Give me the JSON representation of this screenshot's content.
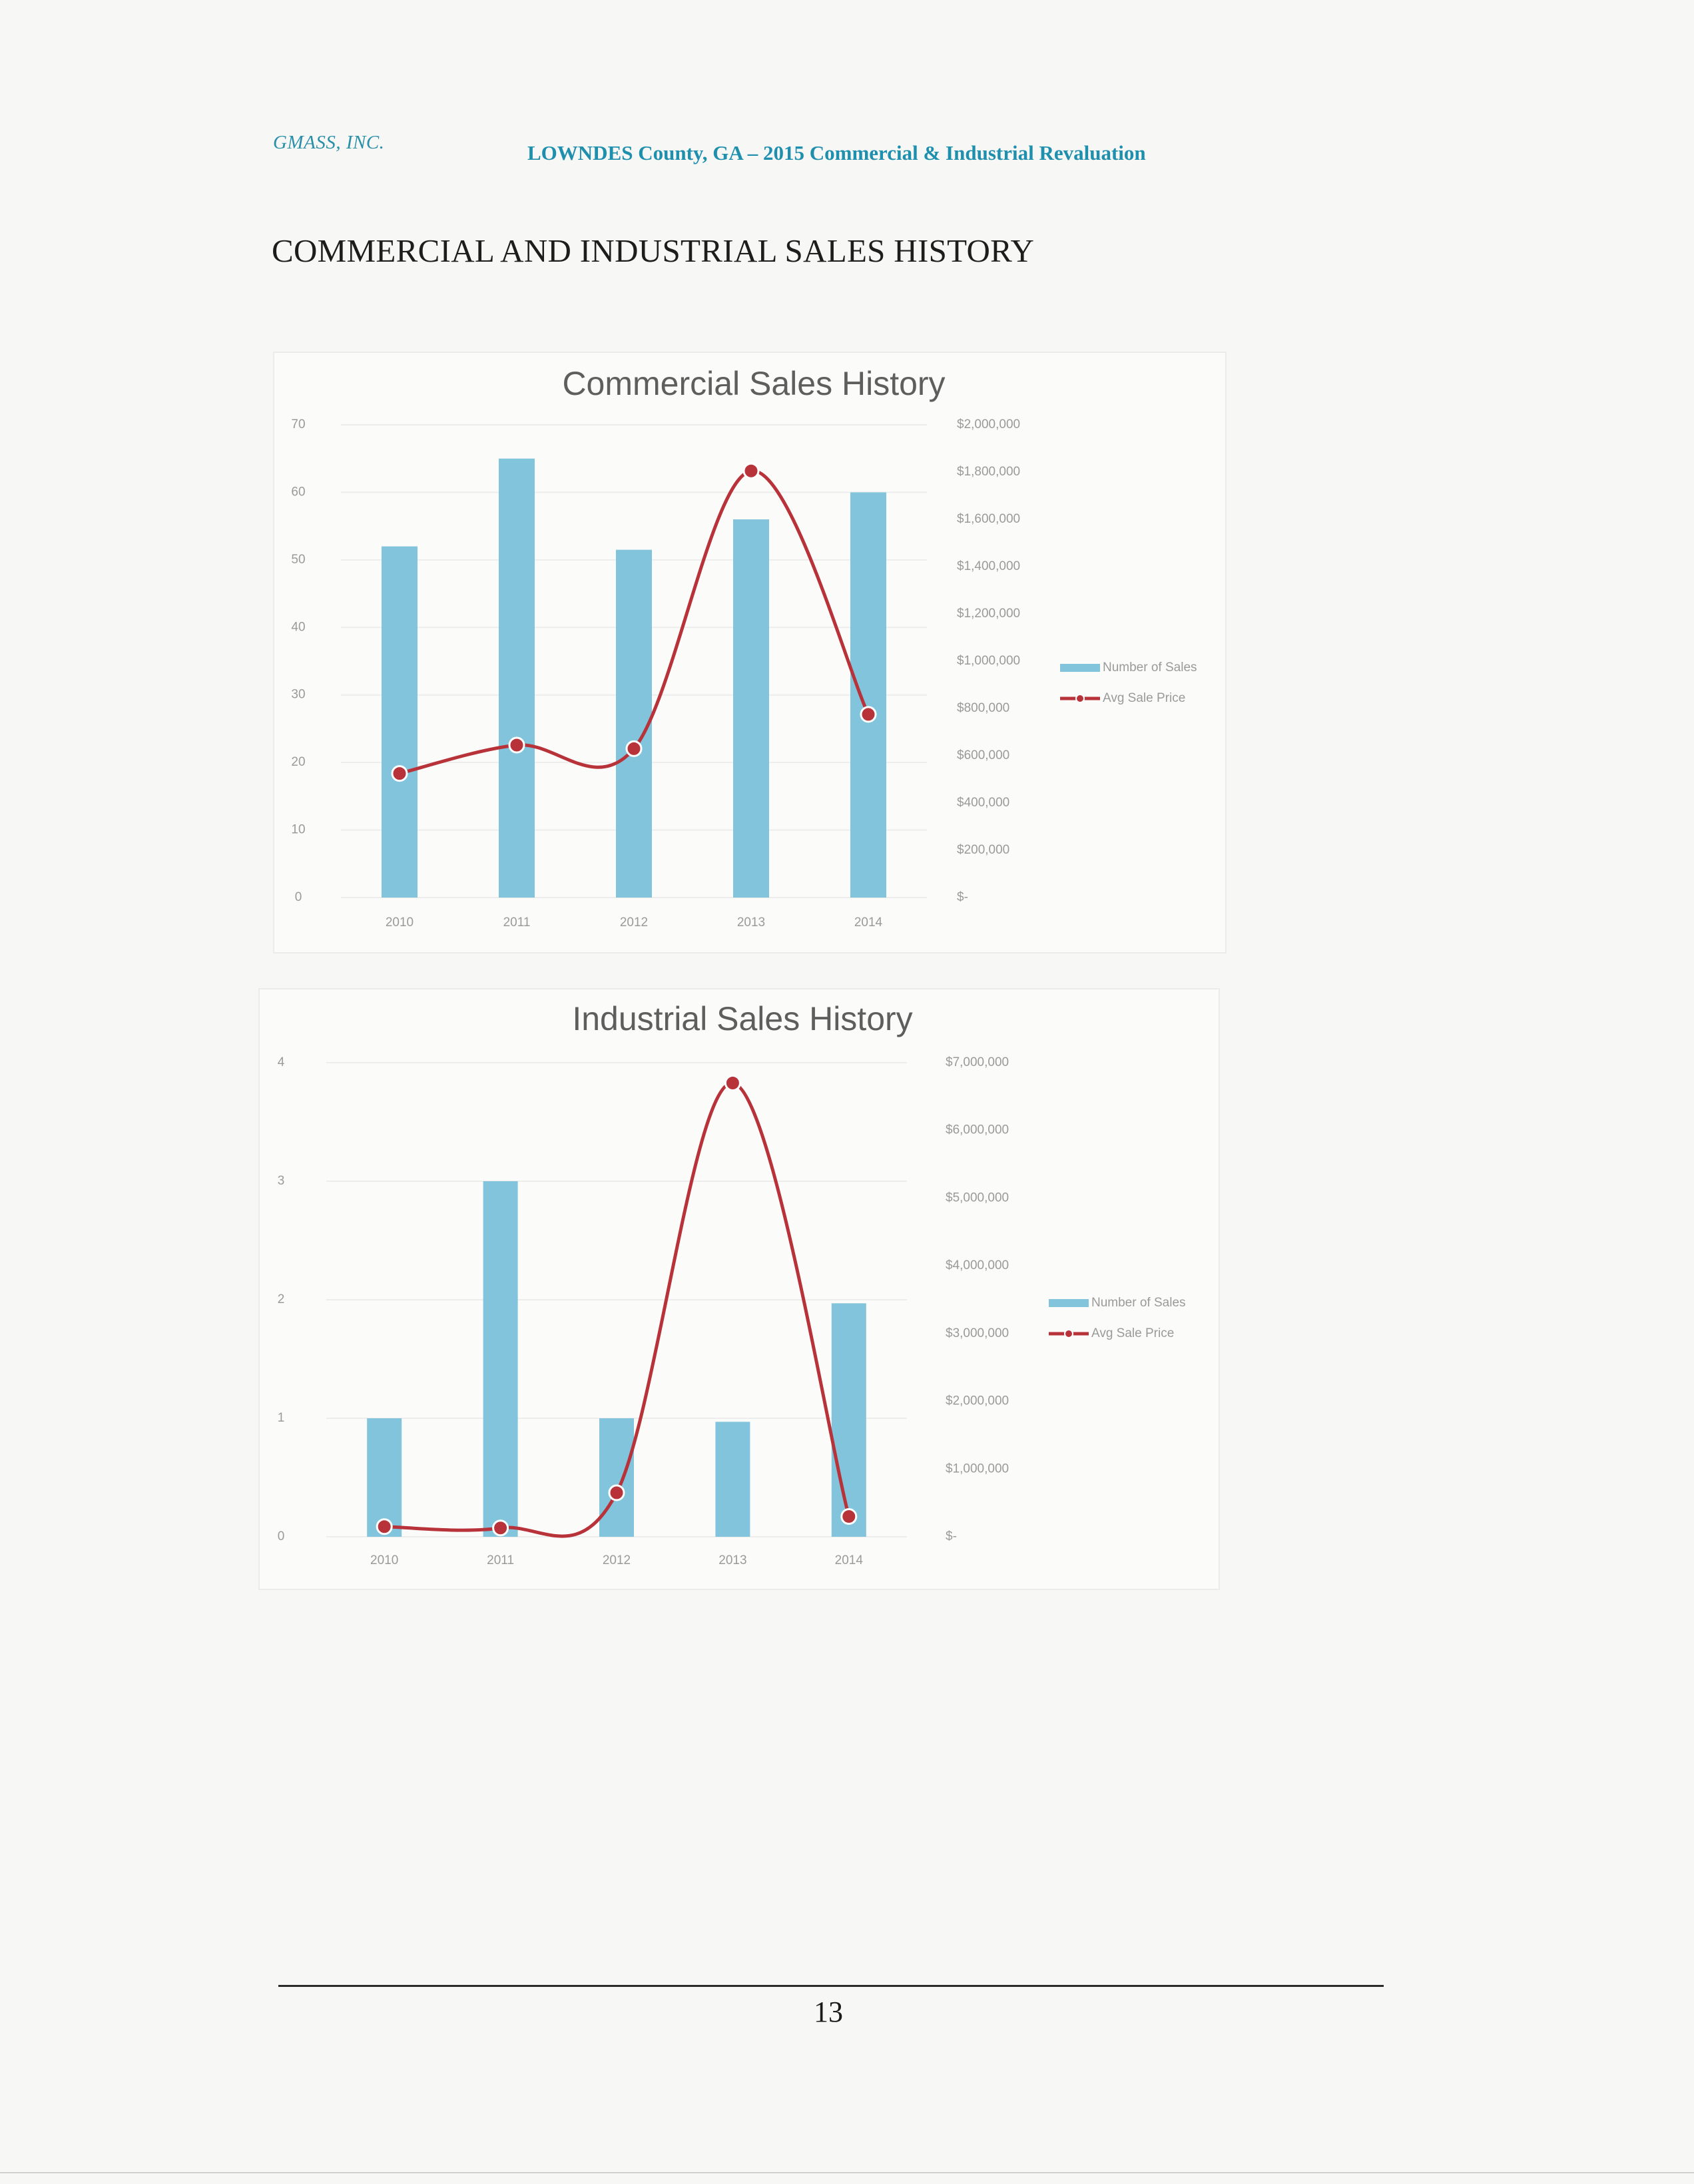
{
  "header": {
    "company": "GMASS, INC.",
    "report_title": "LOWNDES County, GA – 2015 Commercial & Industrial Revaluation"
  },
  "section_title": "COMMERCIAL AND INDUSTRIAL SALES HISTORY",
  "colors": {
    "bar": "#82c4dc",
    "line": "#b8323a",
    "axis_text": "#9a9a9a",
    "chart_title": "#5e5e5e"
  },
  "chart_data": [
    {
      "type": "bar",
      "title": "Commercial Sales History",
      "categories": [
        "2010",
        "2011",
        "2012",
        "2013",
        "2014"
      ],
      "series": [
        {
          "name": "Number of Sales",
          "type": "bar",
          "axis": "left",
          "values": [
            52,
            65,
            51.5,
            56,
            60
          ]
        },
        {
          "name": "Avg Sale Price",
          "type": "line",
          "axis": "right",
          "values": [
            525000,
            645000,
            630000,
            1805000,
            775000
          ]
        }
      ],
      "ylim": [
        0,
        70
      ],
      "y_ticks": [
        "0",
        "10",
        "20",
        "30",
        "40",
        "50",
        "60",
        "70"
      ],
      "y2lim": [
        0,
        2000000
      ],
      "y2_ticks": [
        "$-",
        "$200,000",
        "$400,000",
        "$600,000",
        "$800,000",
        "$1,000,000",
        "$1,200,000",
        "$1,400,000",
        "$1,600,000",
        "$1,800,000",
        "$2,000,000"
      ],
      "legend_position": "right",
      "grid": true
    },
    {
      "type": "bar",
      "title": "Industrial Sales History",
      "categories": [
        "2010",
        "2011",
        "2012",
        "2013",
        "2014"
      ],
      "series": [
        {
          "name": "Number of Sales",
          "type": "bar",
          "axis": "left",
          "values": [
            1,
            3,
            1,
            0.97,
            1.97
          ]
        },
        {
          "name": "Avg Sale Price",
          "type": "line",
          "axis": "right",
          "values": [
            150000,
            130000,
            650000,
            6700000,
            300000
          ]
        }
      ],
      "ylim": [
        0,
        4
      ],
      "y_ticks": [
        "0",
        "1",
        "2",
        "3",
        "4"
      ],
      "y2lim": [
        0,
        7000000
      ],
      "y2_ticks": [
        "$-",
        "$1,000,000",
        "$2,000,000",
        "$3,000,000",
        "$4,000,000",
        "$5,000,000",
        "$6,000,000",
        "$7,000,000"
      ],
      "legend_position": "right",
      "grid": true
    }
  ],
  "footer": {
    "page_number": "13"
  }
}
